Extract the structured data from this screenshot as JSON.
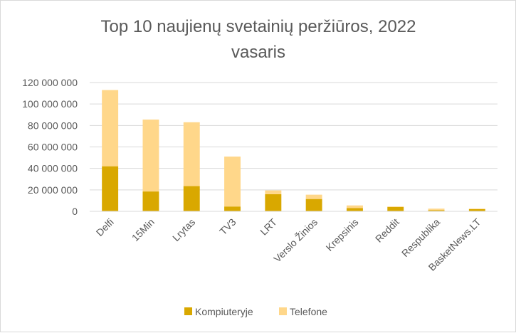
{
  "chart_data": {
    "type": "bar",
    "stacked": true,
    "title_lines": [
      "Top 10 naujienų svetainių peržiūros, 2022",
      "vasaris"
    ],
    "xlabel": "",
    "ylabel": "",
    "ylim": [
      0,
      120000000
    ],
    "y_ticks": [
      0,
      20000000,
      40000000,
      60000000,
      80000000,
      100000000,
      120000000
    ],
    "y_tick_labels": [
      "0",
      "20 000 000",
      "40 000 000",
      "60 000 000",
      "80 000 000",
      "100 000 000",
      "120 000 000"
    ],
    "grid": true,
    "legend_position": "bottom",
    "categories": [
      "Delfi",
      "15Min",
      "Lrytas",
      "TV3",
      "LRT",
      "Verslo Žinios",
      "Krepsinis",
      "Reddit",
      "Respublika",
      "BasketNews.LT"
    ],
    "series": [
      {
        "name": "Kompiuteryje",
        "color": "#D9A800",
        "values": [
          42000000,
          18500000,
          23500000,
          4500000,
          16000000,
          11500000,
          3000000,
          4000000,
          1000000,
          2000000
        ]
      },
      {
        "name": "Telefone",
        "color": "#FFD78A",
        "values": [
          71000000,
          67000000,
          59500000,
          46500000,
          3500000,
          4000000,
          2500000,
          500000,
          1500000,
          500000
        ]
      }
    ]
  }
}
